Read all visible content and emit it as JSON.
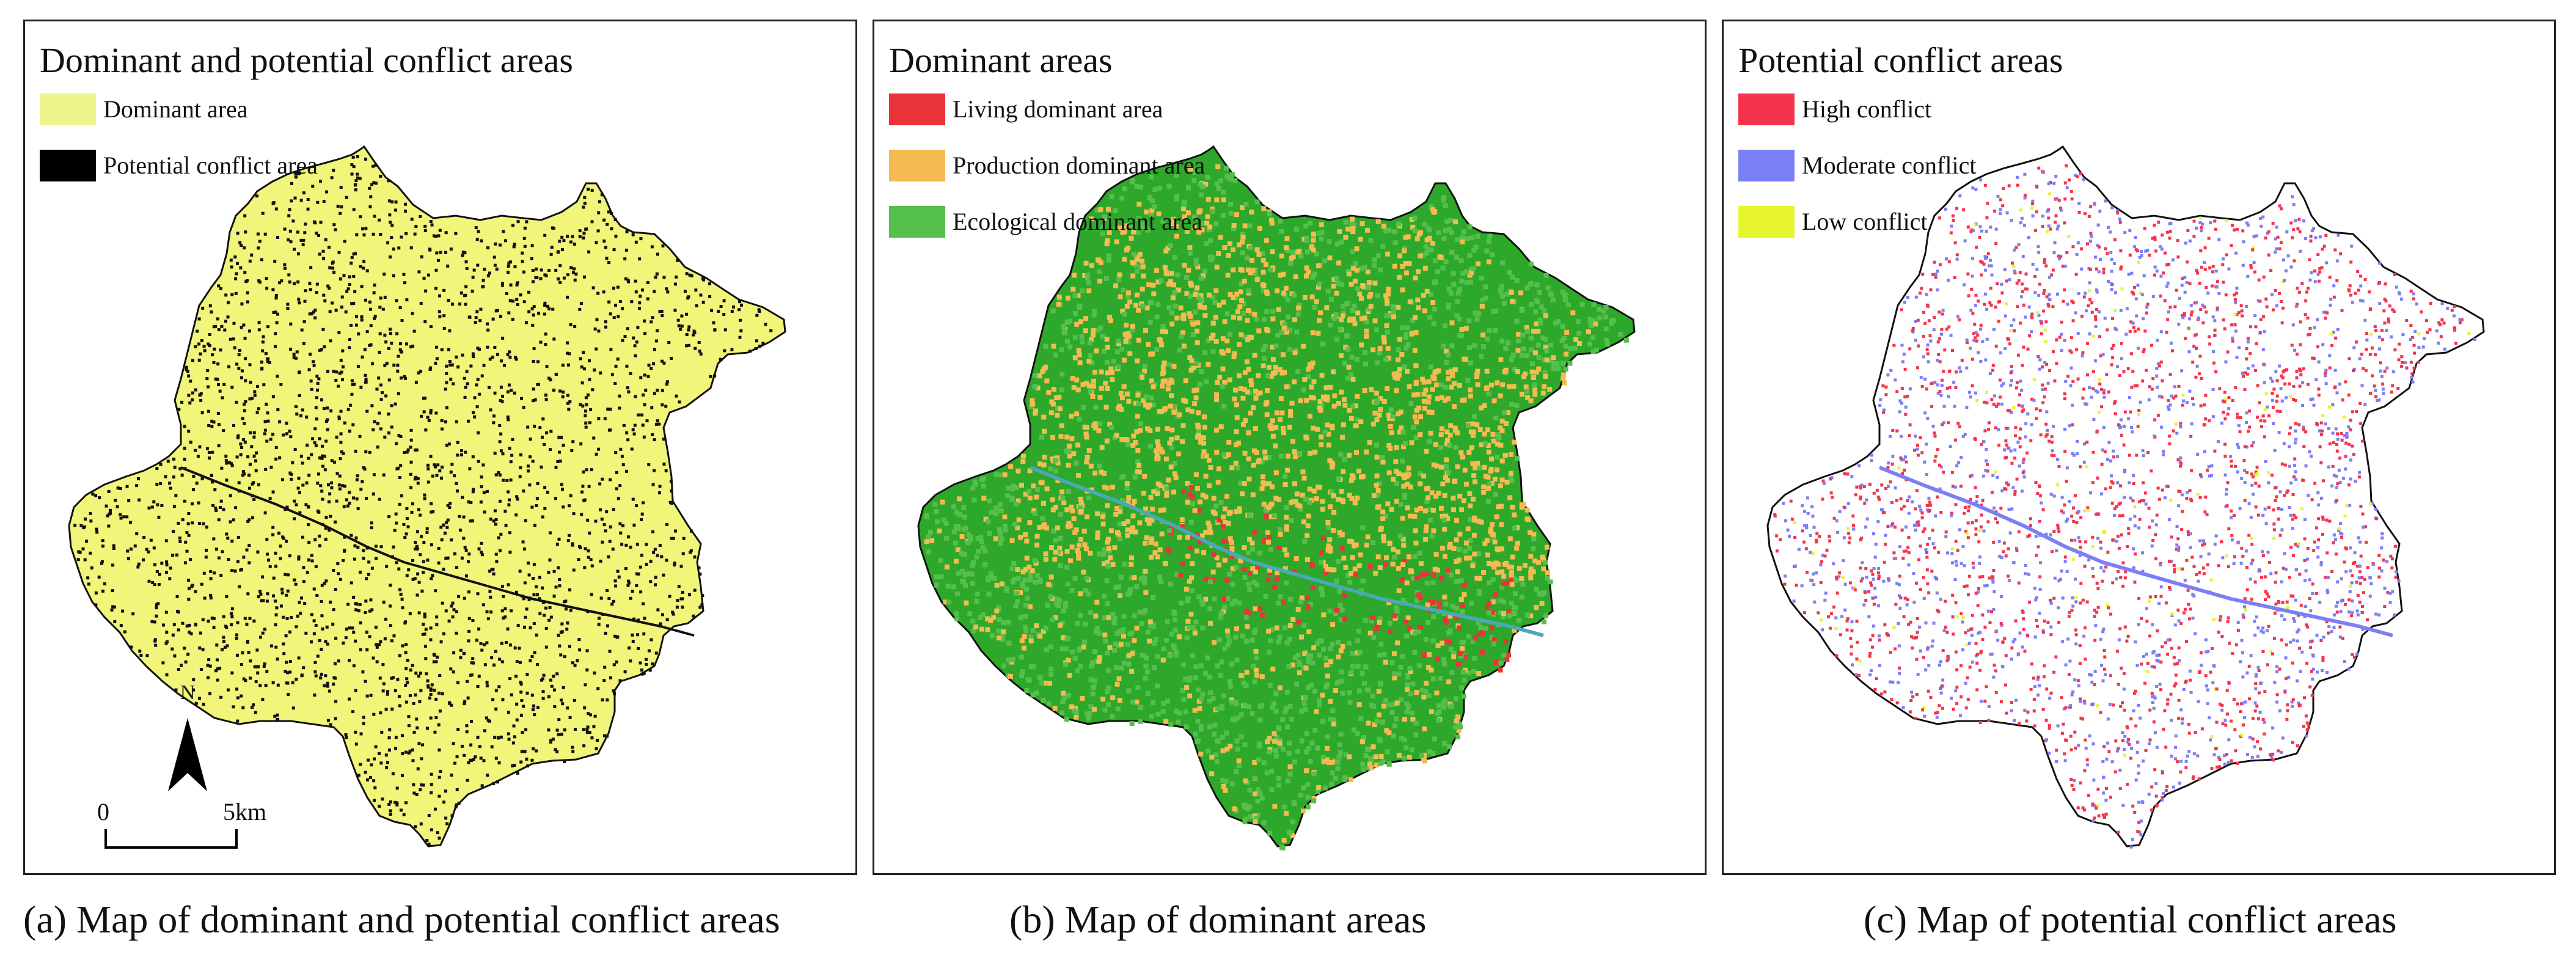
{
  "panels": [
    {
      "title": "Dominant and potential conflict areas",
      "base_color": "#f1f57a",
      "legend": [
        {
          "label": "Dominant area",
          "color": "#eef58a"
        },
        {
          "label": "Potential conflict area",
          "color": "#000000"
        }
      ],
      "caption": "(a) Map of dominant and potential conflict areas"
    },
    {
      "title": "Dominant areas",
      "base_color": "#2ea82a",
      "legend": [
        {
          "label": "Living dominant area",
          "color": "#e8343a"
        },
        {
          "label": "Production dominant area",
          "color": "#f4bb52"
        },
        {
          "label": "Ecological dominant area",
          "color": "#55bf4c"
        }
      ],
      "caption": "(b) Map of dominant  areas"
    },
    {
      "title": "Potential conflict areas",
      "base_color": "#ffffff",
      "legend": [
        {
          "label": "High conflict",
          "color": "#f5344c"
        },
        {
          "label": "Moderate conflict",
          "color": "#7b7ff5"
        },
        {
          "label": "Low conflict",
          "color": "#e6f52e"
        }
      ],
      "caption": "(c) Map of potential conflict areas"
    }
  ],
  "north_arrow": {
    "label": "N"
  },
  "scale_bar": {
    "start_label": "0",
    "end_label": "5km"
  },
  "river_color": "#4aa8b8"
}
